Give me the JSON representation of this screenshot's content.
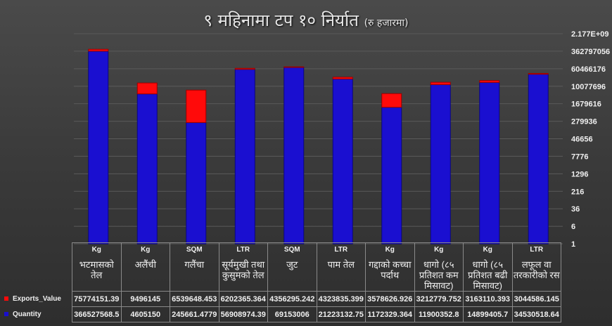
{
  "chart_data": {
    "type": "bar",
    "stacked": true,
    "title": "९ महिनामा टप १० निर्यात",
    "subtitle": "(रु हजारमा)",
    "yscale": "log",
    "log_base": 6,
    "ylim": [
      1,
      2176782336
    ],
    "ytick_labels": [
      "1",
      "6",
      "36",
      "216",
      "1296",
      "7776",
      "46656",
      "279936",
      "1679616",
      "10077696",
      "60466176",
      "362797056",
      "2.177E+09"
    ],
    "grid": true,
    "legend": "table-left",
    "units": [
      "Kg",
      "Kg",
      "SQM",
      "LTR",
      "SQM",
      "LTR",
      "Kg",
      "Kg",
      "Kg",
      "LTR"
    ],
    "categories": [
      "भटमासको तेल",
      "अलैंची",
      "गलैंचा",
      "सूर्यमुखी तथा कुसुमको तेल",
      "जुट",
      "पाम तेल",
      "गद्दाको कच्चा पर्दाथ",
      "धागो (८५ प्रतिशत कम मिसावट)",
      "धागो (८५ प्रतिशत बढी मिसावट)",
      "लफूल वा तरकारीको रस"
    ],
    "series": [
      {
        "name": "Quantity",
        "color": "#1a0fd0",
        "values": [
          366527568.5,
          4605150,
          245661.4779,
          56908974.39,
          69153006,
          21223132.75,
          1172329.364,
          11900352.8,
          14899405.7,
          34530518.64
        ],
        "labels": [
          "366527568.5",
          "4605150",
          "245661.4779",
          "56908974.39",
          "69153006",
          "21223132.75",
          "1172329.364",
          "11900352.8",
          "14899405.7",
          "34530518.64"
        ]
      },
      {
        "name": "Exports_Value",
        "color": "#ff0a0a",
        "values": [
          75774151.39,
          9496145,
          6539648.453,
          6202365.364,
          4356295.242,
          4323835.399,
          3578626.926,
          3212779.752,
          3163110.393,
          3044586.145
        ],
        "labels": [
          "75774151.39",
          "9496145",
          "6539648.453",
          "6202365.364",
          "4356295.242",
          "4323835.399",
          "3578626.926",
          "3212779.752",
          "3163110.393",
          "3044586.145"
        ]
      }
    ]
  }
}
